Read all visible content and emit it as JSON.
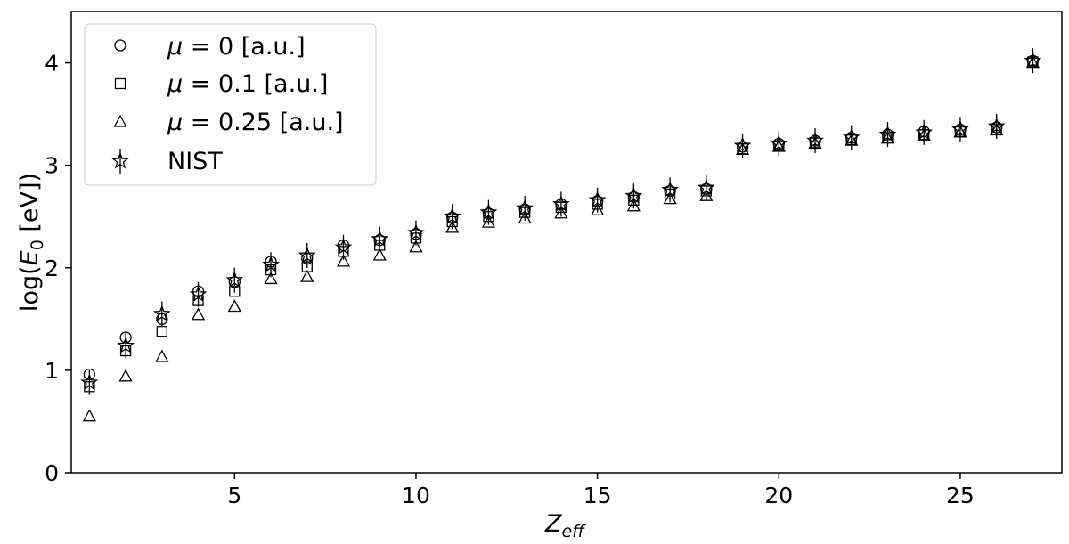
{
  "chart_data": {
    "type": "scatter",
    "xlabel": "Z_eff",
    "xlabel_main": "Z",
    "xlabel_sub": "eff",
    "ylabel": "log(E_0 [eV])",
    "ylabel_pre": "log(",
    "ylabel_E": "E",
    "ylabel_sub": "0",
    "ylabel_post": " [eV])",
    "xlim": [
      0.5,
      27.8
    ],
    "ylim": [
      0,
      4.5
    ],
    "xticks": [
      5,
      10,
      15,
      20,
      25
    ],
    "xtick_labels": [
      "5",
      "10",
      "15",
      "20",
      "25"
    ],
    "yticks": [
      0,
      1,
      2,
      3,
      4
    ],
    "ytick_labels": [
      "0",
      "1",
      "2",
      "3",
      "4"
    ],
    "grid": false,
    "legend_position": "top-left",
    "x": [
      1,
      2,
      3,
      4,
      5,
      6,
      7,
      8,
      9,
      10,
      11,
      12,
      13,
      14,
      15,
      16,
      17,
      18,
      19,
      20,
      21,
      22,
      23,
      24,
      25,
      26,
      27
    ],
    "series": [
      {
        "name": "μ = 0 [a.u.]",
        "legend_mu": "μ",
        "legend_rest": " = 0 [a.u.]",
        "marker": "circle",
        "values": [
          0.96,
          1.32,
          1.5,
          1.77,
          1.86,
          2.06,
          2.09,
          2.22,
          2.27,
          2.33,
          2.49,
          2.53,
          2.57,
          2.62,
          2.65,
          2.69,
          2.75,
          2.77,
          3.18,
          3.21,
          3.24,
          3.27,
          3.3,
          3.33,
          3.35,
          3.37,
          4.02
        ]
      },
      {
        "name": "μ = 0.1 [a.u.]",
        "legend_mu": "μ",
        "legend_rest": " = 0.1 [a.u.]",
        "marker": "square",
        "values": [
          0.84,
          1.19,
          1.38,
          1.68,
          1.77,
          1.98,
          2.01,
          2.16,
          2.22,
          2.29,
          2.45,
          2.5,
          2.54,
          2.59,
          2.62,
          2.66,
          2.72,
          2.75,
          3.16,
          3.19,
          3.22,
          3.25,
          3.27,
          3.3,
          3.33,
          3.35,
          4.01
        ]
      },
      {
        "name": "μ = 0.25 [a.u.]",
        "legend_mu": "μ",
        "legend_rest": " = 0.25 [a.u.]",
        "marker": "triangle",
        "values": [
          0.55,
          0.94,
          1.13,
          1.54,
          1.62,
          1.89,
          1.91,
          2.06,
          2.12,
          2.2,
          2.39,
          2.44,
          2.48,
          2.53,
          2.56,
          2.6,
          2.67,
          2.7,
          3.15,
          3.18,
          3.21,
          3.24,
          3.26,
          3.29,
          3.32,
          3.34,
          4.0
        ]
      },
      {
        "name": "NIST",
        "legend_mu": "",
        "legend_rest": "NIST",
        "marker": "star",
        "values": [
          0.88,
          1.24,
          1.55,
          1.74,
          1.88,
          2.03,
          2.12,
          2.2,
          2.28,
          2.34,
          2.5,
          2.54,
          2.58,
          2.62,
          2.66,
          2.7,
          2.76,
          2.78,
          3.19,
          3.21,
          3.24,
          3.27,
          3.3,
          3.32,
          3.35,
          3.38,
          4.02
        ]
      }
    ]
  }
}
